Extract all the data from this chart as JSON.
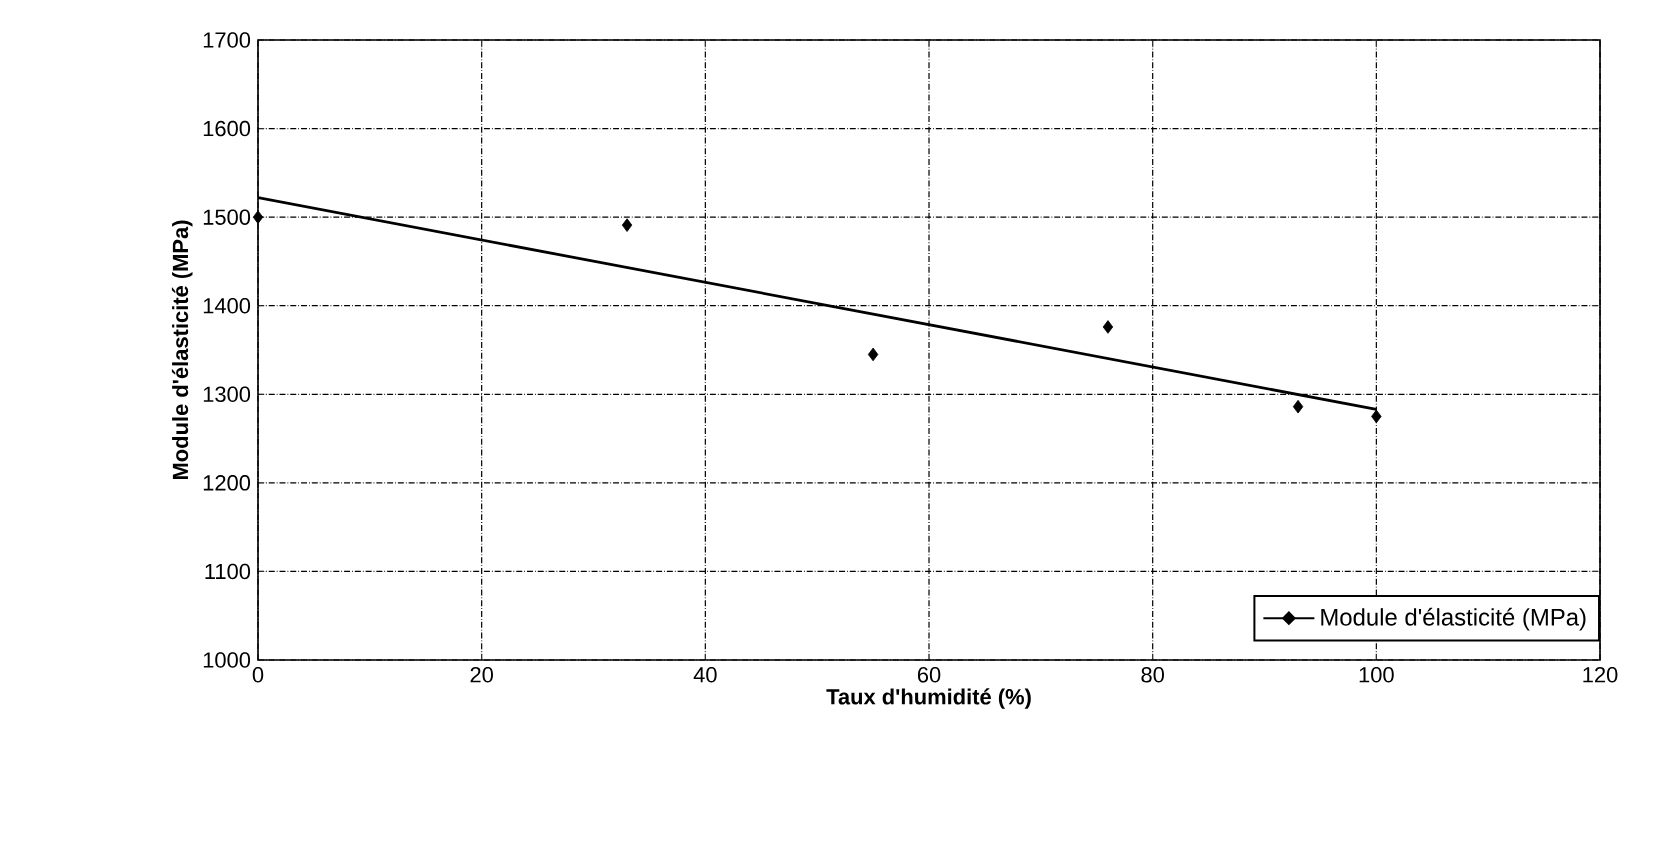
{
  "chart_data": {
    "type": "scatter",
    "xlabel": "Taux d'humidité (%)",
    "ylabel": "Module d'élasticité (MPa)",
    "series": [
      {
        "name": "Module d'élasticité (MPa)",
        "color": "#000000",
        "marker": "diamond",
        "x": [
          0,
          33,
          55,
          76,
          93,
          100
        ],
        "values": [
          1500,
          1491,
          1345,
          1376,
          1286,
          1275
        ]
      },
      {
        "type": "line",
        "color": "#000000",
        "x": [
          0,
          100
        ],
        "values": [
          1522,
          1283
        ]
      }
    ],
    "xlim": [
      0,
      120
    ],
    "xticks": [
      0,
      20,
      40,
      60,
      80,
      100,
      120
    ],
    "ylim": [
      1000,
      1700
    ],
    "yticks": [
      1000,
      1100,
      1200,
      1300,
      1400,
      1500,
      1600,
      1700
    ],
    "grid": true,
    "legend": "bottom right"
  }
}
